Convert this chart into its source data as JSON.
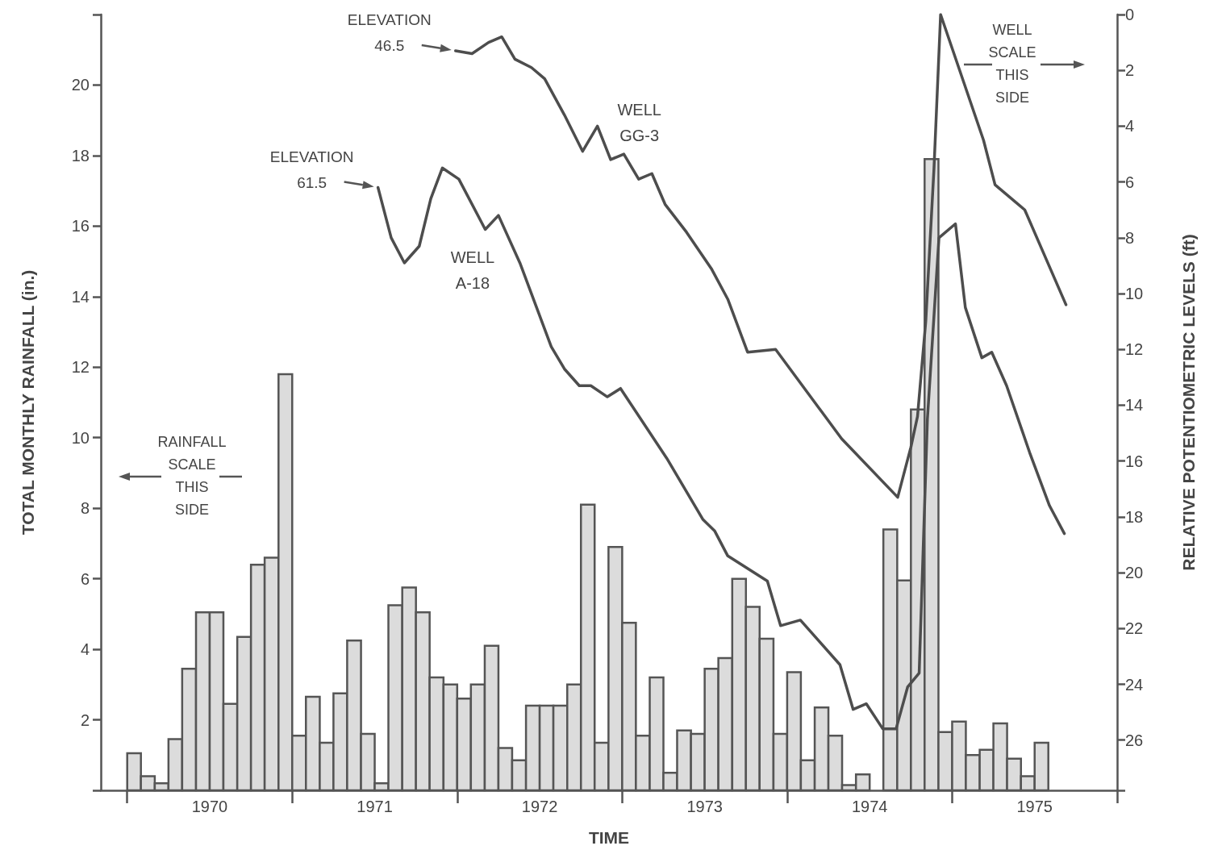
{
  "chart_data": {
    "type": "histogram",
    "xlabel": "TIME",
    "ylabel": "TOTAL MONTHLY RAINFALL (in.)",
    "y2label": "RELATIVE POTENTIOMETRIC LEVELS (ft)",
    "bins": [
      1970,
      1970.083,
      1970.167,
      1970.25,
      1970.333,
      1970.417,
      1970.5,
      1970.583,
      1970.667,
      1970.75,
      1970.833,
      1970.917,
      1971,
      1971.083,
      1971.167,
      1971.25,
      1971.333,
      1971.417,
      1971.5,
      1971.583,
      1971.667,
      1971.75,
      1971.833,
      1971.917,
      1972,
      1972.083,
      1972.167,
      1972.25,
      1972.333,
      1972.417,
      1972.5,
      1972.583,
      1972.667,
      1972.75,
      1972.833,
      1972.917,
      1973,
      1973.083,
      1973.167,
      1973.25,
      1973.333,
      1973.417,
      1973.5,
      1973.583,
      1973.667,
      1973.75,
      1973.833,
      1973.917,
      1974,
      1974.083,
      1974.167,
      1974.25,
      1974.333,
      1974.417,
      1974.5,
      1974.583,
      1974.667,
      1974.75,
      1974.833,
      1974.917,
      1975,
      1975.083,
      1975.167,
      1975.25,
      1975.333,
      1975.417,
      1975.5,
      1975.583
    ],
    "values": [
      1.05,
      0.4,
      0.2,
      1.45,
      3.45,
      5.05,
      5.05,
      2.45,
      4.35,
      6.4,
      6.6,
      11.8,
      1.55,
      2.65,
      1.35,
      2.75,
      4.25,
      1.6,
      0.2,
      5.25,
      5.75,
      5.05,
      3.2,
      3.0,
      2.6,
      3.0,
      4.1,
      1.2,
      0.85,
      2.4,
      2.4,
      2.4,
      3.0,
      8.1,
      1.35,
      6.9,
      4.75,
      1.55,
      3.2,
      0.5,
      1.7,
      1.6,
      3.45,
      3.75,
      6.0,
      5.2,
      4.3,
      1.6,
      3.35,
      0.85,
      2.35,
      1.55,
      0.15,
      0.45,
      0,
      7.4,
      5.95,
      10.8,
      17.9,
      1.65,
      1.95,
      1.0,
      1.15,
      1.9,
      0.9,
      0.4,
      1.35
    ],
    "color": "#dcdcdc",
    "series": [
      {
        "name": "WELL GG-3",
        "type": "line",
        "axis": "y2",
        "color": "#4d4d4d",
        "x": [
          1971.99,
          1972.09,
          1972.19,
          1972.27,
          1972.35,
          1972.45,
          1972.53,
          1972.65,
          1972.76,
          1972.85,
          1972.93,
          1973.01,
          1973.1,
          1973.18,
          1973.26,
          1973.39,
          1973.54,
          1973.64,
          1973.76,
          1973.93,
          1974.33,
          1974.67,
          1974.75,
          1974.79,
          1974.84,
          1974.89,
          1974.93,
          1975.19,
          1975.26,
          1975.44,
          1975.69
        ],
        "values": [
          1.3,
          1.4,
          1.0,
          0.8,
          1.6,
          1.9,
          2.3,
          3.6,
          4.9,
          4.0,
          5.2,
          5.0,
          5.9,
          5.7,
          6.8,
          7.8,
          9.1,
          10.2,
          12.1,
          12.0,
          15.2,
          17.3,
          15.5,
          14.4,
          11.0,
          5.5,
          0,
          4.5,
          6.1,
          7.0,
          10.4
        ]
      },
      {
        "name": "WELL A-18",
        "type": "line",
        "axis": "y2",
        "color": "#4d4d4d",
        "x": [
          1971.52,
          1971.6,
          1971.68,
          1971.77,
          1971.84,
          1971.91,
          1972.01,
          1972.17,
          1972.25,
          1972.38,
          1972.57,
          1972.65,
          1972.74,
          1972.81,
          1972.91,
          1972.99,
          1973.27,
          1973.49,
          1973.56,
          1973.64,
          1973.88,
          1973.96,
          1974.08,
          1974.32,
          1974.4,
          1974.48,
          1974.58,
          1974.66,
          1974.73,
          1974.8,
          1974.85,
          1974.92,
          1975.02,
          1975.08,
          1975.18,
          1975.24,
          1975.33,
          1975.47,
          1975.59,
          1975.68
        ],
        "values": [
          6.2,
          8.0,
          8.9,
          8.3,
          6.6,
          5.5,
          5.9,
          7.7,
          7.2,
          8.9,
          11.9,
          12.7,
          13.3,
          13.3,
          13.7,
          13.4,
          15.9,
          18.1,
          18.5,
          19.4,
          20.3,
          21.9,
          21.7,
          23.3,
          24.9,
          24.7,
          25.6,
          25.6,
          24.1,
          23.6,
          14.5,
          8.0,
          7.5,
          10.5,
          12.3,
          12.1,
          13.3,
          15.7,
          17.6,
          18.6
        ]
      }
    ],
    "xlim": [
      1969.84,
      1976
    ],
    "xticks": [
      {
        "value": 1970,
        "label": null
      },
      {
        "value": 1970.5,
        "label": "1970"
      },
      {
        "value": 1971,
        "label": null
      },
      {
        "value": 1971.5,
        "label": "1971"
      },
      {
        "value": 1972,
        "label": null
      },
      {
        "value": 1972.5,
        "label": "1972"
      },
      {
        "value": 1973,
        "label": null
      },
      {
        "value": 1973.5,
        "label": "1973"
      },
      {
        "value": 1974,
        "label": null
      },
      {
        "value": 1974.5,
        "label": "1974"
      },
      {
        "value": 1975,
        "label": null
      },
      {
        "value": 1975.5,
        "label": "1975"
      },
      {
        "value": 1976,
        "label": null
      }
    ],
    "ylim": [
      0,
      22
    ],
    "yticks": [
      2,
      4,
      6,
      8,
      10,
      12,
      14,
      16,
      18,
      20
    ],
    "y2lim": [
      27.8,
      0
    ],
    "y2ticks": [
      0,
      2,
      4,
      6,
      8,
      10,
      12,
      14,
      16,
      18,
      20,
      22,
      24,
      26
    ],
    "annotations": [
      "ELEVATION 46.5",
      "ELEVATION 61.5",
      "RAINFALL SCALE THIS SIDE",
      "WELL SCALE THIS SIDE"
    ],
    "grid": false,
    "legend": false,
    "marker": "none",
    "line_style": "solid"
  }
}
